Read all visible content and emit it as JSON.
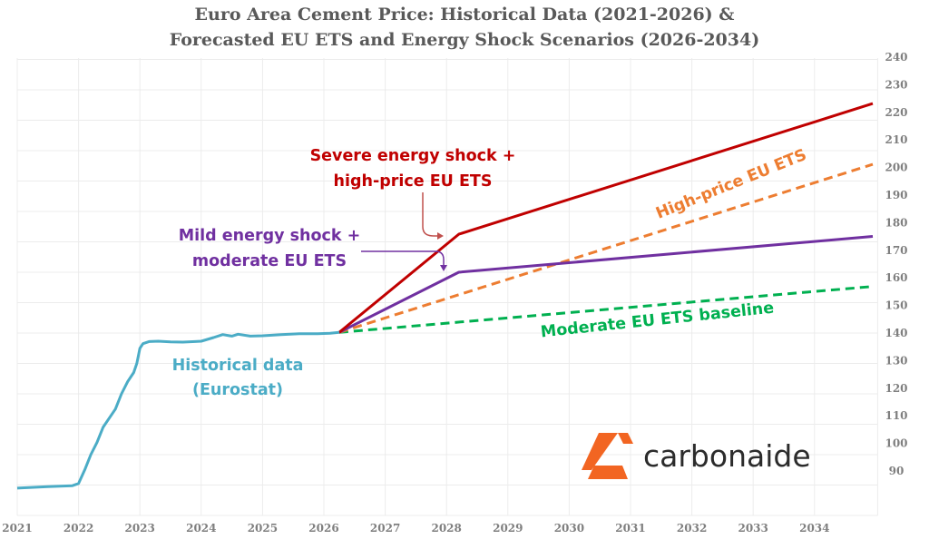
{
  "chart_data": {
    "type": "line",
    "title": [
      "Euro Area Cement Price: Historical Data (2021-2026) &",
      "Forecasted EU ETS and Energy Shock Scenarios (2026-2034)"
    ],
    "xlabel": "",
    "ylabel": "",
    "xlim": [
      2021,
      2035
    ],
    "ylim": [
      90,
      240
    ],
    "x_ticks": [
      "2021",
      "2022",
      "2023",
      "2024",
      "2025",
      "2026",
      "2027",
      "2028",
      "2029",
      "2030",
      "2031",
      "2032",
      "2033",
      "2034"
    ],
    "y_ticks": [
      "90",
      "100",
      "110",
      "120",
      "130",
      "140",
      "150",
      "160",
      "170",
      "180",
      "190",
      "200",
      "210",
      "220",
      "230",
      "240"
    ],
    "y_axis_side": "right",
    "grid": true,
    "series": [
      {
        "id": "historical",
        "style": "solid",
        "color": "#4bacc6",
        "x": [
          2021.0,
          2021.5,
          2021.9,
          2022.0,
          2022.1,
          2022.2,
          2022.3,
          2022.4,
          2022.5,
          2022.6,
          2022.7,
          2022.8,
          2022.9,
          2022.95,
          2023.0,
          2023.05,
          2023.15,
          2023.3,
          2023.5,
          2023.7,
          2023.9,
          2024.0,
          2024.2,
          2024.35,
          2024.5,
          2024.6,
          2024.8,
          2025.0,
          2025.3,
          2025.6,
          2025.9,
          2026.1,
          2026.25
        ],
        "y": [
          99,
          99.5,
          99.8,
          100.5,
          105,
          110,
          114,
          119,
          122,
          125,
          130,
          134,
          137,
          140,
          145,
          146.5,
          147.2,
          147.3,
          147.1,
          147,
          147.2,
          147.3,
          148.5,
          149.5,
          149,
          149.6,
          149,
          149.1,
          149.5,
          149.8,
          149.8,
          149.9,
          150.2
        ]
      },
      {
        "id": "severe",
        "style": "solid",
        "color": "#c00000",
        "x": [
          2026.25,
          2028.2,
          2034.95
        ],
        "y": [
          150.2,
          182.5,
          225.5
        ]
      },
      {
        "id": "mild",
        "style": "solid",
        "color": "#7030a0",
        "x": [
          2026.25,
          2028.2,
          2034.95
        ],
        "y": [
          150.2,
          170,
          181.8
        ]
      },
      {
        "id": "high-price",
        "style": "dashed",
        "color": "#ed7d31",
        "x": [
          2026.25,
          2034.95
        ],
        "y": [
          150.2,
          205.5
        ]
      },
      {
        "id": "moderate",
        "style": "dashed",
        "color": "#00b050",
        "x": [
          2026.25,
          2034.95
        ],
        "y": [
          150.2,
          165.3
        ]
      }
    ],
    "annotations": {
      "severe": [
        "Severe energy shock +",
        "high-price EU ETS"
      ],
      "mild": [
        "Mild energy shock +",
        "moderate EU ETS"
      ],
      "high_price": "High-price EU ETS",
      "moderate": "Moderate EU ETS baseline",
      "historical": [
        "Historical data",
        "(Eurostat)"
      ]
    }
  },
  "logo": {
    "text": "carbonaide",
    "color": "#f26522"
  }
}
